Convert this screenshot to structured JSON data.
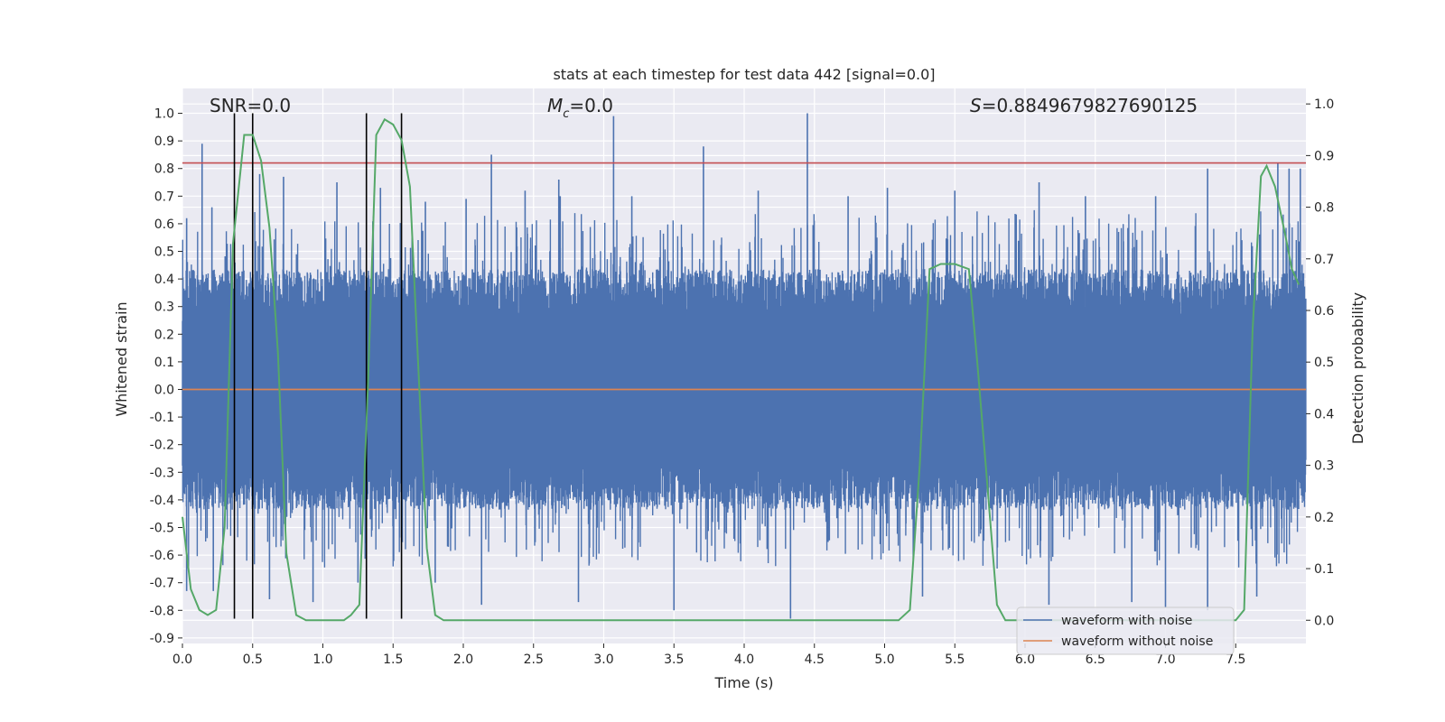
{
  "chart_data": {
    "type": "line",
    "title": "stats at each timestep for test data 442 [signal=0.0]",
    "xlabel": "Time (s)",
    "ylabel": "Whitened strain",
    "ylabel_right": "Detection probability",
    "xlim": [
      0.0,
      8.0
    ],
    "ylim": [
      -0.92,
      1.09
    ],
    "ylim_right": [
      -0.045,
      1.03
    ],
    "x_ticks": [
      "0.0",
      "0.5",
      "1.0",
      "1.5",
      "2.0",
      "2.5",
      "3.0",
      "3.5",
      "4.0",
      "4.5",
      "5.0",
      "5.5",
      "6.0",
      "6.5",
      "7.0",
      "7.5"
    ],
    "y_ticks": [
      "-0.9",
      "-0.8",
      "-0.7",
      "-0.6",
      "-0.5",
      "-0.4",
      "-0.3",
      "-0.2",
      "-0.1",
      "0.0",
      "0.1",
      "0.2",
      "0.3",
      "0.4",
      "0.5",
      "0.6",
      "0.7",
      "0.8",
      "0.9",
      "1.0"
    ],
    "y_ticks_right": [
      "0.0",
      "0.1",
      "0.2",
      "0.3",
      "0.4",
      "0.5",
      "0.6",
      "0.7",
      "0.8",
      "0.9",
      "1.0"
    ],
    "annotations": {
      "snr": "SNR=0.0",
      "mc_symbol": "M",
      "mc_sub": "c",
      "mc_value": "=0.0",
      "s_symbol": "S",
      "s_value": "=0.8849679827690125"
    },
    "threshold": {
      "value": 0.82,
      "color": "#c44e52"
    },
    "vertical_markers": [
      0.37,
      0.5,
      1.31,
      1.56
    ],
    "series": [
      {
        "name": "waveform with noise",
        "color": "#4c72b0",
        "envelope_typical": 0.45,
        "spikes": [
          [
            0.03,
            0.62
          ],
          [
            0.14,
            0.89
          ],
          [
            0.21,
            0.66
          ],
          [
            0.55,
            0.78
          ],
          [
            0.72,
            0.77
          ],
          [
            1.1,
            0.75
          ],
          [
            1.41,
            0.73
          ],
          [
            1.73,
            0.68
          ],
          [
            2.02,
            0.69
          ],
          [
            2.2,
            0.85
          ],
          [
            2.44,
            0.72
          ],
          [
            2.69,
            0.7
          ],
          [
            2.68,
            0.76
          ],
          [
            3.07,
            0.99
          ],
          [
            3.2,
            0.7
          ],
          [
            3.71,
            0.88
          ],
          [
            4.1,
            0.72
          ],
          [
            4.45,
            1.0
          ],
          [
            4.74,
            0.7
          ],
          [
            5.02,
            0.73
          ],
          [
            5.5,
            0.72
          ],
          [
            6.1,
            0.75
          ],
          [
            6.43,
            0.7
          ],
          [
            6.93,
            0.7
          ],
          [
            7.3,
            0.8
          ],
          [
            7.8,
            0.82
          ],
          [
            7.88,
            0.8
          ],
          [
            7.96,
            0.8
          ]
        ],
        "neg_spikes": [
          [
            0.03,
            -0.73
          ],
          [
            0.22,
            -0.73
          ],
          [
            0.62,
            -0.76
          ],
          [
            0.93,
            -0.77
          ],
          [
            1.25,
            -0.7
          ],
          [
            1.8,
            -0.7
          ],
          [
            2.13,
            -0.78
          ],
          [
            2.82,
            -0.77
          ],
          [
            3.5,
            -0.8
          ],
          [
            4.33,
            -0.83
          ],
          [
            5.27,
            -0.75
          ],
          [
            6.17,
            -0.78
          ],
          [
            6.76,
            -0.77
          ],
          [
            7.0,
            -0.79
          ],
          [
            7.3,
            -0.8
          ],
          [
            7.65,
            -0.75
          ]
        ]
      },
      {
        "name": "waveform without noise",
        "color": "#dd8452",
        "value": 0.0
      },
      {
        "name": "Detection probability",
        "axis": "right",
        "color": "#55a868",
        "x": [
          0.0,
          0.06,
          0.12,
          0.18,
          0.24,
          0.3,
          0.36,
          0.44,
          0.5,
          0.56,
          0.62,
          0.68,
          0.74,
          0.81,
          0.88,
          0.95,
          1.05,
          1.15,
          1.2,
          1.26,
          1.32,
          1.38,
          1.44,
          1.5,
          1.56,
          1.62,
          1.68,
          1.74,
          1.8,
          1.86,
          1.95,
          2.5,
          3.5,
          4.5,
          5.0,
          5.1,
          5.18,
          5.25,
          5.32,
          5.4,
          5.5,
          5.6,
          5.66,
          5.72,
          5.8,
          5.86,
          5.95,
          6.5,
          7.0,
          7.3,
          7.5,
          7.56,
          7.62,
          7.68,
          7.72,
          7.78,
          7.85,
          7.9,
          7.95
        ],
        "y": [
          0.2,
          0.06,
          0.02,
          0.01,
          0.02,
          0.18,
          0.73,
          0.94,
          0.94,
          0.89,
          0.76,
          0.52,
          0.13,
          0.01,
          0.0,
          0.0,
          0.0,
          0.0,
          0.01,
          0.03,
          0.45,
          0.94,
          0.97,
          0.96,
          0.93,
          0.84,
          0.49,
          0.14,
          0.01,
          0.0,
          0.0,
          0.0,
          0.0,
          0.0,
          0.0,
          0.0,
          0.02,
          0.3,
          0.68,
          0.69,
          0.69,
          0.68,
          0.5,
          0.3,
          0.03,
          0.0,
          0.0,
          0.0,
          0.0,
          0.0,
          0.0,
          0.02,
          0.56,
          0.86,
          0.88,
          0.84,
          0.75,
          0.68,
          0.65
        ]
      }
    ],
    "legend": {
      "placement": "lower-right",
      "entries": [
        "waveform with noise",
        "waveform without noise"
      ]
    },
    "grid": true
  },
  "colors": {
    "plot_background": "#eaeaf2",
    "grid": "#ffffff",
    "marker": "#000000"
  }
}
